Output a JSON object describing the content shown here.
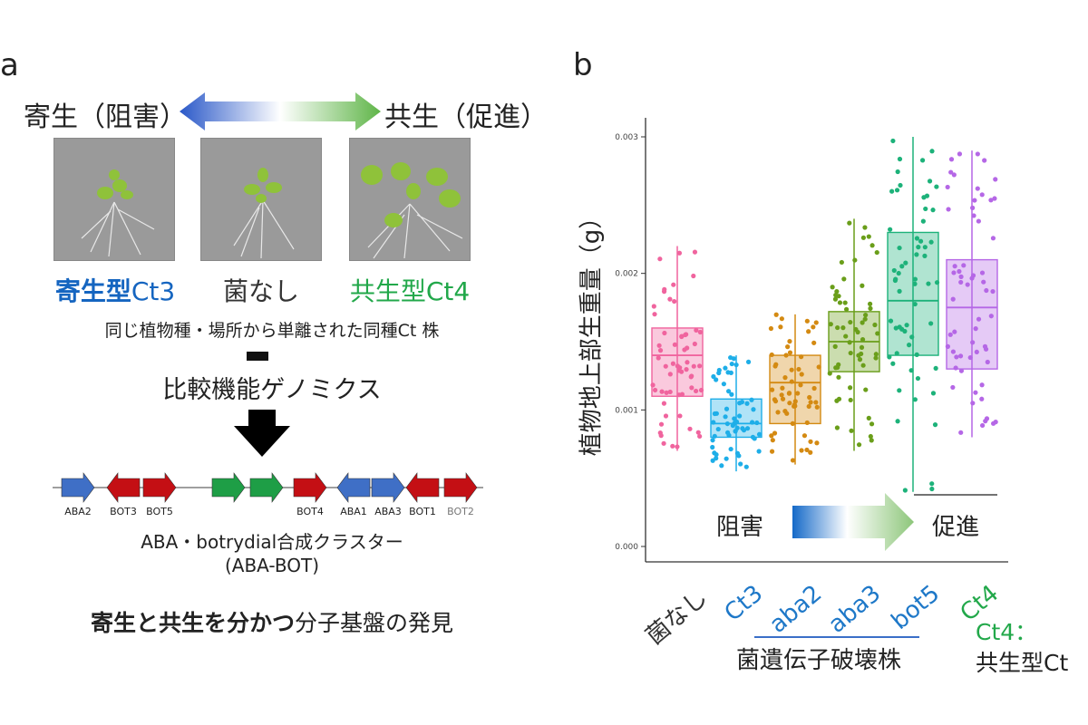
{
  "panel_a": {
    "label": "a",
    "left_arrow_label": "寄生（阻害）",
    "right_arrow_label": "共生（促進）",
    "strains": [
      {
        "label_bold": "寄生型",
        "label_rest": "Ct3",
        "color": "#1565c0"
      },
      {
        "label_bold": "",
        "label_rest": "菌なし",
        "color": "#333333"
      },
      {
        "label_bold": "共生型",
        "label_rest": "Ct4",
        "color": "#22a84a"
      }
    ],
    "isolation_text": "同じ植物種・場所から単離された同種Ct 株",
    "genomics_text": "比較機能ゲノミクス",
    "genes": [
      {
        "name": "ABA2",
        "dir": "right",
        "color": "#3f6fc6"
      },
      {
        "name": "BOT3",
        "dir": "left",
        "color": "#c40f14"
      },
      {
        "name": "BOT5",
        "dir": "right",
        "color": "#c40f14"
      },
      {
        "name": "",
        "dir": "right",
        "color": "#1e9e46"
      },
      {
        "name": "",
        "dir": "right",
        "color": "#1e9e46"
      },
      {
        "name": "BOT4",
        "dir": "right",
        "color": "#c40f14"
      },
      {
        "name": "ABA1",
        "dir": "left",
        "color": "#3f6fc6"
      },
      {
        "name": "ABA3",
        "dir": "right",
        "color": "#3f6fc6"
      },
      {
        "name": "BOT1",
        "dir": "left",
        "color": "#c40f14"
      },
      {
        "name": "BOT2",
        "dir": "right",
        "color": "#c40f14"
      }
    ],
    "cluster_name": "ABA・botrydial合成クラスター",
    "cluster_abbrev": "(ABA-BOT)",
    "conclusion_bold": "寄生と共生を分かつ",
    "conclusion_rest": "分子基盤の発見"
  },
  "panel_b": {
    "label": "b",
    "inhibit_label": "阻害",
    "promote_label": "促進",
    "group_label": "菌遺伝子破壊株",
    "footnote_1": "Ct4：",
    "footnote_2": "共生型Ct"
  },
  "chart_data": {
    "type": "box",
    "ylabel": "植物地上部生重量（g）",
    "ylim": [
      0,
      0.003
    ],
    "yticks": [
      "0.000",
      "0.001",
      "0.002",
      "0.003"
    ],
    "categories": [
      "菌なし",
      "Ct3",
      "aba2",
      "aba3",
      "bot5",
      "Ct4"
    ],
    "category_colors": [
      "#333333",
      "#1e78c8",
      "#1e78c8",
      "#1e78c8",
      "#1e78c8",
      "#22a84a"
    ],
    "series_colors": [
      "#f0649e",
      "#1eaee8",
      "#d48a12",
      "#6a9e1a",
      "#1db27a",
      "#b567e6"
    ],
    "boxes": [
      {
        "min": 0.0007,
        "q1": 0.0011,
        "median": 0.0014,
        "q3": 0.0016,
        "max": 0.0022
      },
      {
        "min": 0.00055,
        "q1": 0.0008,
        "median": 0.0009,
        "q3": 0.00108,
        "max": 0.0014
      },
      {
        "min": 0.0006,
        "q1": 0.0009,
        "median": 0.0012,
        "q3": 0.0014,
        "max": 0.0017
      },
      {
        "min": 0.0007,
        "q1": 0.00128,
        "median": 0.0015,
        "q3": 0.00172,
        "max": 0.0024
      },
      {
        "min": 0.0004,
        "q1": 0.0014,
        "median": 0.0018,
        "q3": 0.0023,
        "max": 0.003
      },
      {
        "min": 0.0008,
        "q1": 0.0013,
        "median": 0.00175,
        "q3": 0.0021,
        "max": 0.0029
      }
    ]
  }
}
